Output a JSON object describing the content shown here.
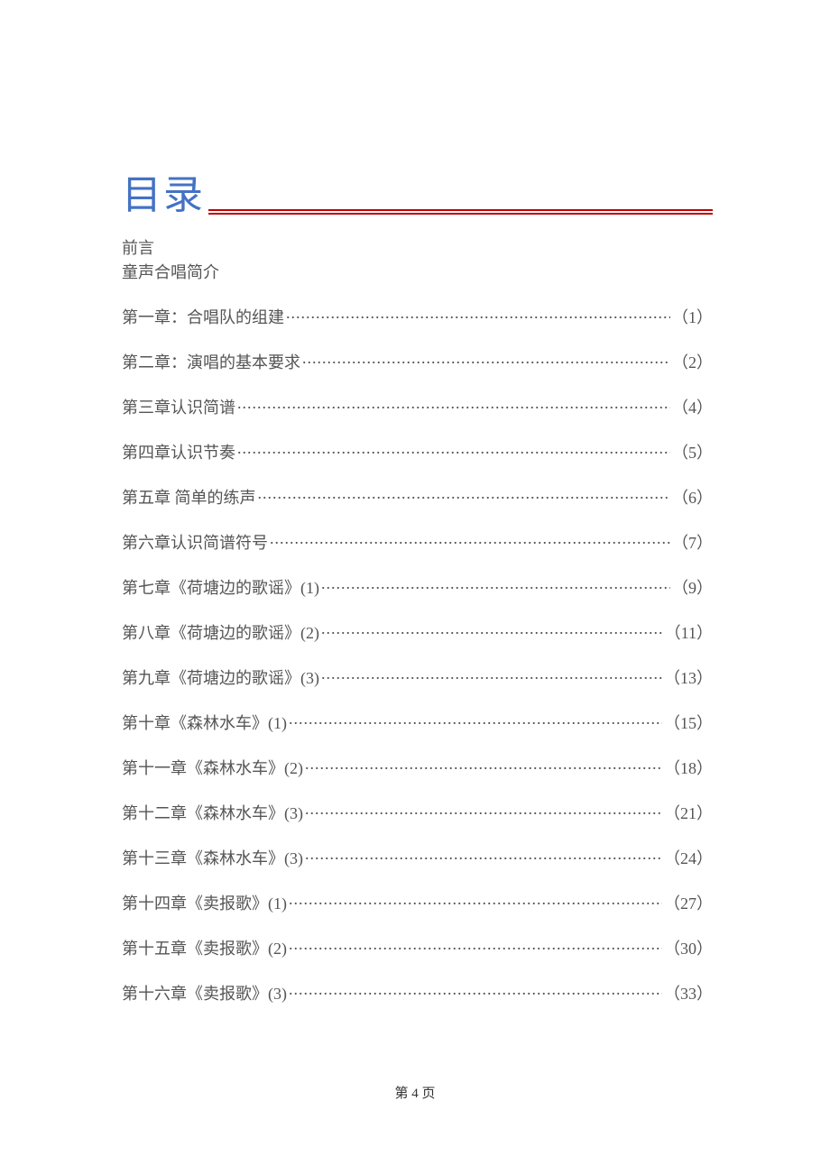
{
  "title": "目录",
  "title_color": "#4472c4",
  "title_fontsize": 44,
  "rule_color": "#c00000",
  "text_color": "#555555",
  "body_fontsize": 18,
  "background_color": "#ffffff",
  "preamble": [
    "前言",
    "童声合唱简介"
  ],
  "toc": [
    {
      "label": "第一章：合唱队的组建",
      "page": "（1）"
    },
    {
      "label": "第二章：演唱的基本要求",
      "page": "（2）"
    },
    {
      "label": "第三章认识简谱",
      "page": "（4）"
    },
    {
      "label": "第四章认识节奏",
      "page": "（5）"
    },
    {
      "label": "第五章 简单的练声",
      "page": "（6）"
    },
    {
      "label": "第六章认识简谱符号",
      "page": "（7）"
    },
    {
      "label": "第七章《荷塘边的歌谣》(1)",
      "page": "（9）"
    },
    {
      "label": "第八章《荷塘边的歌谣》(2)",
      "page": "（11）"
    },
    {
      "label": "第九章《荷塘边的歌谣》(3)",
      "page": "（13）"
    },
    {
      "label": "第十章《森林水车》(1)",
      "page": "（15）"
    },
    {
      "label": "第十一章《森林水车》(2)",
      "page": "（18）"
    },
    {
      "label": "第十二章《森林水车》(3)",
      "page": "（21）"
    },
    {
      "label": "第十三章《森林水车》(3)",
      "page": "（24）"
    },
    {
      "label": "第十四章《卖报歌》(1)",
      "page": "（27）"
    },
    {
      "label": "第十五章《卖报歌》(2)",
      "page": "（30）"
    },
    {
      "label": "第十六章《卖报歌》(3)",
      "page": "（33）"
    }
  ],
  "footer": "第 4 页"
}
